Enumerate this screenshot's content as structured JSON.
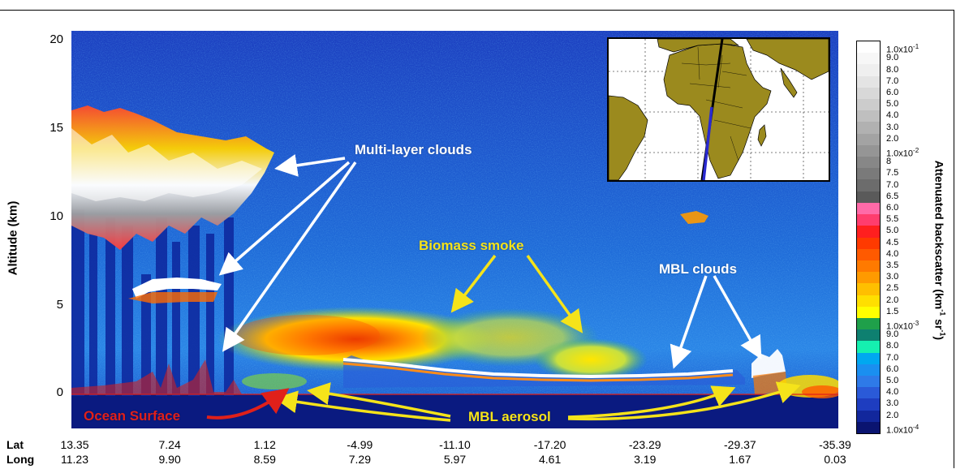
{
  "chart_data": {
    "type": "heatmap",
    "ylabel": "Altitude (km)",
    "ylim": [
      -2,
      20.5
    ],
    "yticks": [
      "20",
      "15",
      "10",
      "5",
      "0"
    ],
    "x_rows": [
      {
        "label": "Lat",
        "ticks": [
          "13.35",
          "7.24",
          "1.12",
          "-4.99",
          "-11.10",
          "-17.20",
          "-23.29",
          "-29.37",
          "-35.39"
        ]
      },
      {
        "label": "Long",
        "ticks": [
          "11.23",
          "9.90",
          "8.59",
          "7.29",
          "5.97",
          "4.61",
          "3.19",
          "1.67",
          "0.03"
        ]
      }
    ],
    "colorbar": {
      "title": "Attenuated backscatter (km-1 sr-1)",
      "labels": [
        "1.0x10-1",
        "9.0",
        "8.0",
        "7.0",
        "6.0",
        "5.0",
        "4.0",
        "3.0",
        "2.0",
        "1.0x10-2",
        "8",
        "7.5",
        "7.0",
        "6.5",
        "6.0",
        "5.5",
        "5.0",
        "4.5",
        "4.0",
        "3.5",
        "3.0",
        "2.5",
        "2.0",
        "1.5",
        "1.0x10-3",
        "9.0",
        "8.0",
        "7.0",
        "6.0",
        "5.0",
        "4.0",
        "3.0",
        "2.0",
        "1.0x10-4"
      ],
      "colors": [
        "#ffffff",
        "#f7f7f7",
        "#efefef",
        "#e4e4e4",
        "#d8d8d8",
        "#cccccc",
        "#bfbfbf",
        "#b1b1b1",
        "#a3a3a3",
        "#959595",
        "#878787",
        "#7a7a7a",
        "#6c6c6c",
        "#5a5a5a",
        "#ff6aa8",
        "#ff3d6e",
        "#ff1f1f",
        "#ff3a00",
        "#ff5a00",
        "#ff7a00",
        "#ff9a00",
        "#ffbf00",
        "#ffdf00",
        "#ffff00",
        "#1fa04a",
        "#0e8070",
        "#15f0b0",
        "#00a8f0",
        "#1a8ff0",
        "#2e7ae8",
        "#2a5ad8",
        "#1e3dc0",
        "#12279c",
        "#0a1470"
      ]
    },
    "annotations": {
      "multi_layer": "Multi-layer clouds",
      "biomass": "Biomass smoke",
      "mbl_clouds": "MBL clouds",
      "ocean": "Ocean Surface",
      "mbl_aerosol": "MBL aerosol"
    },
    "colors": {
      "white_text": "#ffffff",
      "yellow_text": "#f5e31a",
      "red_text": "#e0201a",
      "background_blue": "#1e5fd0",
      "land": "#9b8a1e"
    }
  }
}
